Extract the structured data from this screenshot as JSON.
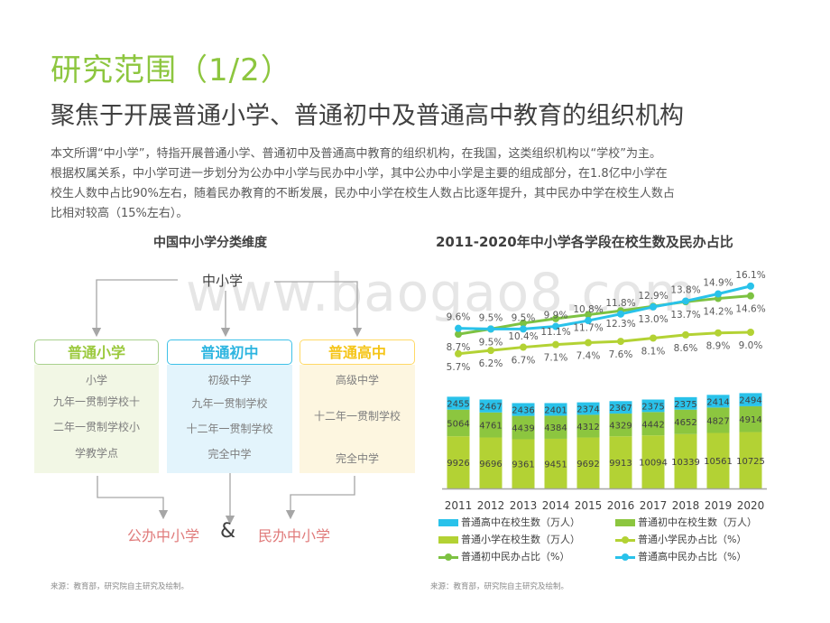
{
  "header": {
    "title": "研究范围（1/2）",
    "subtitle": "聚焦于开展普通小学、普通初中及普通高中教育的组织机构"
  },
  "intro": {
    "lines": [
      "本文所谓“中小学”，特指开展普通小学、普通初中及普通高中教育的组织机构，在我国，这类组织机构以“学校”为主。",
      "根据权属关系，中小学可进一步划分为公办中小学与民办中小学，其中公办中小学是主要的组成部分，在1.8亿中小学在",
      "校生人数中占比90%左右，随着民办教育的不断发展，民办中小学在校生人数占比逐年提升，其中民办中学在校生人数占",
      "比相对较高（15%左右）。"
    ]
  },
  "diagram": {
    "heading": "中国中小学分类维度",
    "root": "中小学",
    "categories": [
      {
        "label": "普通小学",
        "color": "#9bc93d",
        "items": [
          "小学",
          "九年一贯制学校十",
          "二年一贯制学校小",
          "学教学点"
        ]
      },
      {
        "label": "普通初中",
        "color": "#2db5e0",
        "items": [
          "初级中学",
          "九年一贯制学校",
          "十二年一贯制学校",
          "完全中学"
        ]
      },
      {
        "label": "普通高中",
        "color": "#f5c518",
        "items": [
          "高级中学",
          "十二年一贯制学校",
          "完全中学"
        ]
      }
    ],
    "public_label": "公办中小学",
    "ampersand": "&",
    "private_label": "民办中小学",
    "source": "来源：教育部，研究院自主研究及绘制。"
  },
  "watermark": "www.baogao8.com",
  "chart_data": {
    "type": "bar",
    "title": "2011-2020年中小学各学段在校生数及民办占比",
    "categories": [
      "2011",
      "2012",
      "2013",
      "2014",
      "2015",
      "2016",
      "2017",
      "2018",
      "2019",
      "2020"
    ],
    "series": [
      {
        "name": "普通小学在校生数（万人）",
        "kind": "stacked-bar",
        "color": "#b3d234",
        "values": [
          9926,
          9696,
          9361,
          9451,
          9692,
          9913,
          10094,
          10339,
          10561,
          10725
        ]
      },
      {
        "name": "普通初中在校生数（万人）",
        "kind": "stacked-bar",
        "color": "#8cc63f",
        "values": [
          5064,
          4761,
          4439,
          4384,
          4312,
          4329,
          4442,
          4652,
          4827,
          4914
        ]
      },
      {
        "name": "普通高中在校生数（万人）",
        "kind": "stacked-bar",
        "color": "#29c2ea",
        "values": [
          2455,
          2467,
          2436,
          2401,
          2374,
          2367,
          2375,
          2375,
          2414,
          2494
        ]
      },
      {
        "name": "普通小学民办占比（%）",
        "kind": "line",
        "color": "#b3d234",
        "values": [
          5.7,
          6.2,
          6.7,
          7.1,
          7.4,
          7.6,
          8.1,
          8.6,
          8.9,
          9.0
        ]
      },
      {
        "name": "普通初中民办占比（%）",
        "kind": "line",
        "color": "#7dc242",
        "values": [
          8.7,
          9.5,
          10.4,
          11.1,
          11.7,
          12.3,
          13.0,
          13.7,
          14.2,
          14.6
        ]
      },
      {
        "name": "普通高中民办占比（%）",
        "kind": "line",
        "color": "#29c2ea",
        "values": [
          9.6,
          9.5,
          9.5,
          9.9,
          10.8,
          11.8,
          12.9,
          13.8,
          14.9,
          16.1
        ]
      }
    ],
    "line_labels": {
      "primary": [
        "5.7%",
        "6.2%",
        "6.7%",
        "7.1%",
        "7.4%",
        "7.6%",
        "8.1%",
        "8.6%",
        "8.9%",
        "9.0%"
      ],
      "junior": [
        "8.7%",
        "9.5%",
        "10.4%",
        "11.1%",
        "11.7%",
        "12.3%",
        "13.0%",
        "13.7%",
        "14.2%",
        "14.6%"
      ],
      "senior": [
        "9.6%",
        "9.5%",
        "9.5%",
        "9.9%",
        "10.8%",
        "11.8%",
        "12.9%",
        "13.8%",
        "14.9%",
        "16.1%"
      ]
    },
    "legend_position": "bottom",
    "grid": false,
    "source": "来源：教育部，研究院自主研究及绘制。"
  }
}
